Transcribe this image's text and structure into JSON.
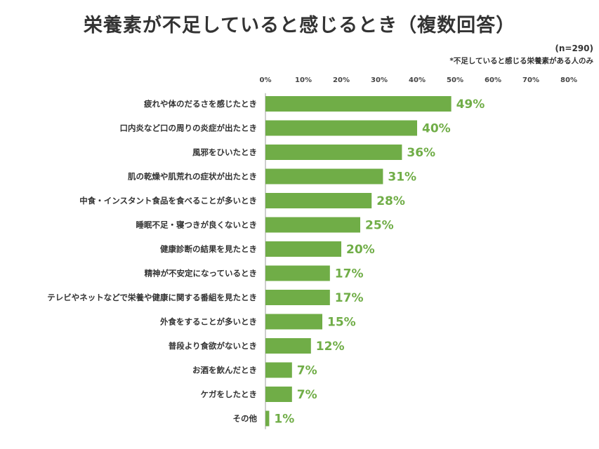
{
  "title": "栄養素が不足していると感じるとき（複数回答）",
  "notes": {
    "sample": "(n=290)",
    "condition": "*不足していると感じる栄養素がある人のみ"
  },
  "colors": {
    "bar": "#70ad47",
    "label": "#70ad47",
    "axis": "#9e9e9e"
  },
  "chart_data": {
    "type": "bar",
    "orientation": "horizontal",
    "title": "栄養素が不足していると感じるとき（複数回答）",
    "xlim": [
      0,
      80
    ],
    "xticks": [
      0,
      10,
      20,
      30,
      40,
      50,
      60,
      70,
      80
    ],
    "tick_labels": [
      "0%",
      "10%",
      "20%",
      "30%",
      "40%",
      "50%",
      "60%",
      "70%",
      "80%"
    ],
    "grid": false,
    "categories": [
      "疲れや体のだるさを感じたとき",
      "口内炎など口の周りの炎症が出たとき",
      "風邪をひいたとき",
      "肌の乾燥や肌荒れの症状が出たとき",
      "中食・インスタント食品を食べることが多いとき",
      "睡眠不足・寝つきが良くないとき",
      "健康診断の結果を見たとき",
      "精神が不安定になっているとき",
      "テレビやネットなどで栄養や健康に関する番組を見たとき",
      "外食をすることが多いとき",
      "普段より食欲がないとき",
      "お酒を飲んだとき",
      "ケガをしたとき",
      "その他"
    ],
    "values": [
      49,
      40,
      36,
      31,
      28,
      25,
      20,
      17,
      17,
      15,
      12,
      7,
      7,
      1
    ],
    "value_labels": [
      "49%",
      "40%",
      "36%",
      "31%",
      "28%",
      "25%",
      "20%",
      "17%",
      "17%",
      "15%",
      "12%",
      "7%",
      "7%",
      "1%"
    ]
  }
}
